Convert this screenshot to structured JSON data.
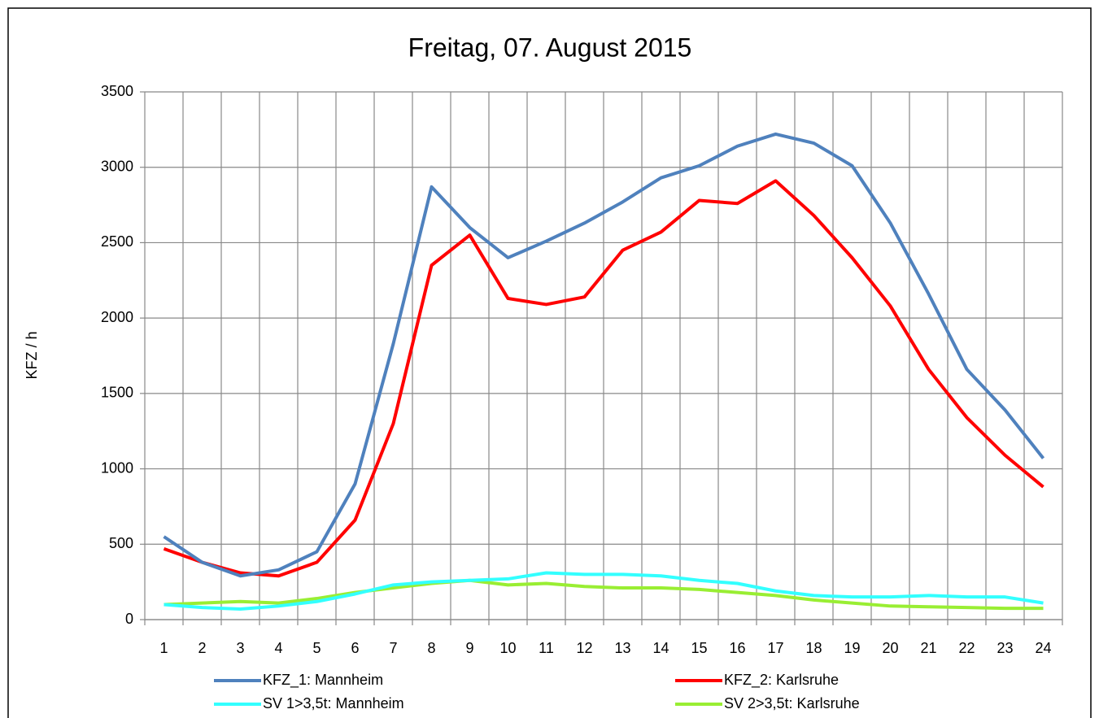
{
  "chart_data": {
    "type": "line",
    "title": "Freitag, 07. August 2015",
    "y_label": "KFZ / h",
    "categories": [
      "1",
      "2",
      "3",
      "4",
      "5",
      "6",
      "7",
      "8",
      "9",
      "10",
      "11",
      "12",
      "13",
      "14",
      "15",
      "16",
      "17",
      "18",
      "19",
      "20",
      "21",
      "22",
      "23",
      "24"
    ],
    "series": [
      {
        "name": "KFZ_1: Mannheim",
        "color": "#4f81bd",
        "values": [
          550,
          380,
          290,
          330,
          450,
          900,
          1830,
          2870,
          2600,
          2400,
          2510,
          2630,
          2770,
          2930,
          3010,
          3140,
          3220,
          3160,
          3010,
          2630,
          2160,
          1660,
          1390,
          1070
        ]
      },
      {
        "name": "KFZ_2: Karlsruhe",
        "color": "#ff0000",
        "values": [
          470,
          380,
          310,
          290,
          380,
          660,
          1300,
          2350,
          2550,
          2130,
          2090,
          2140,
          2450,
          2570,
          2780,
          2760,
          2910,
          2680,
          2400,
          2080,
          1660,
          1340,
          1090,
          880
        ]
      },
      {
        "name": "SV  1>3,5t: Mannheim",
        "color": "#33ffff",
        "values": [
          100,
          80,
          70,
          90,
          120,
          170,
          230,
          250,
          260,
          270,
          310,
          300,
          300,
          290,
          260,
          240,
          190,
          160,
          150,
          150,
          160,
          150,
          150,
          110
        ]
      },
      {
        "name": "SV  2>3,5t: Karlsruhe",
        "color": "#99ee33",
        "values": [
          100,
          110,
          120,
          110,
          140,
          180,
          210,
          240,
          260,
          230,
          240,
          220,
          210,
          210,
          200,
          180,
          160,
          130,
          110,
          90,
          85,
          80,
          75,
          75
        ]
      }
    ],
    "ylim": [
      0,
      3500
    ],
    "yticks": [
      0,
      500,
      1000,
      1500,
      2000,
      2500,
      3000,
      3500
    ],
    "grid": true,
    "legend": "bottom"
  }
}
